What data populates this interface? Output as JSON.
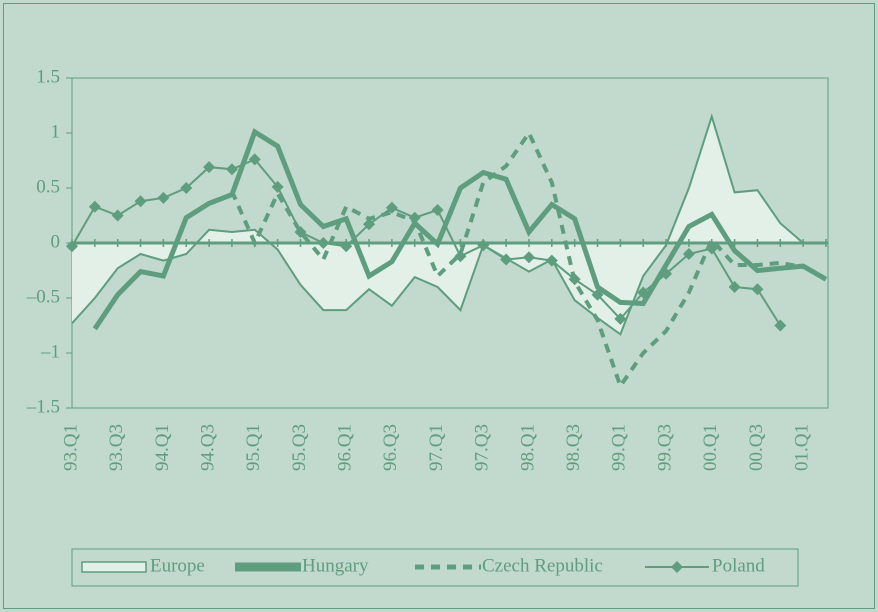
{
  "chart_data": {
    "type": "line",
    "categories": [
      "93.Q1",
      null,
      "93.Q3",
      null,
      "94.Q1",
      null,
      "94.Q3",
      null,
      "95.Q1",
      null,
      "95.Q3",
      null,
      "96.Q1",
      null,
      "96.Q3",
      null,
      "97.Q1",
      null,
      "97.Q3",
      null,
      "98.Q1",
      null,
      "98.Q3",
      null,
      "99.Q1",
      null,
      "99.Q3",
      null,
      "00.Q1",
      null,
      "00.Q3",
      null,
      "01.Q1",
      null
    ],
    "series": [
      {
        "name": "Europe",
        "color": "#5e9e7e",
        "fill": "#e2f0e8",
        "values": [
          -0.73,
          -0.5,
          -0.23,
          -0.1,
          -0.16,
          -0.1,
          0.12,
          0.1,
          0.12,
          -0.06,
          -0.38,
          -0.61,
          -0.61,
          -0.42,
          -0.57,
          -0.31,
          -0.4,
          -0.61,
          -0.02,
          -0.14,
          -0.26,
          -0.15,
          -0.52,
          -0.68,
          -0.83,
          -0.3,
          -0.02,
          0.5,
          1.15,
          0.46,
          0.48,
          0.18,
          0.0,
          null
        ]
      },
      {
        "name": "Hungary",
        "color": "#5e9e7e",
        "values": [
          null,
          -0.78,
          -0.47,
          -0.26,
          -0.3,
          0.23,
          0.36,
          0.44,
          1.01,
          0.88,
          0.35,
          0.15,
          0.22,
          -0.3,
          -0.17,
          0.18,
          -0.01,
          0.5,
          0.64,
          0.58,
          0.1,
          0.35,
          0.22,
          -0.4,
          -0.54,
          -0.55,
          -0.2,
          0.15,
          0.26,
          -0.07,
          -0.25,
          -0.23,
          -0.21,
          -0.33
        ]
      },
      {
        "name": "Czech Republic",
        "color": "#5e9e7e",
        "values": [
          null,
          null,
          null,
          null,
          null,
          null,
          null,
          0.47,
          0.0,
          0.45,
          0.1,
          -0.15,
          0.33,
          0.22,
          0.28,
          0.2,
          -0.3,
          -0.1,
          0.55,
          0.7,
          1.0,
          0.55,
          -0.35,
          -0.7,
          -1.3,
          -1.0,
          -0.8,
          -0.45,
          0.03,
          -0.2,
          -0.2,
          -0.18,
          -0.22,
          null
        ]
      },
      {
        "name": "Poland",
        "color": "#5e9e7e",
        "values": [
          -0.03,
          0.33,
          0.25,
          0.38,
          0.41,
          0.5,
          0.69,
          0.67,
          0.76,
          0.51,
          0.1,
          0.0,
          -0.03,
          0.17,
          0.32,
          0.23,
          0.3,
          -0.12,
          -0.02,
          -0.15,
          -0.13,
          -0.16,
          -0.33,
          -0.47,
          -0.69,
          -0.45,
          -0.28,
          -0.1,
          -0.05,
          -0.4,
          -0.42,
          -0.75,
          null,
          null
        ]
      }
    ],
    "ylim": [
      -1.5,
      1.5
    ],
    "yticks": [
      {
        "value": -1.5,
        "label": "–1.5"
      },
      {
        "value": -1,
        "label": "–1"
      },
      {
        "value": -0.5,
        "label": "–0.5"
      },
      0,
      0.5,
      1,
      1.5
    ]
  }
}
